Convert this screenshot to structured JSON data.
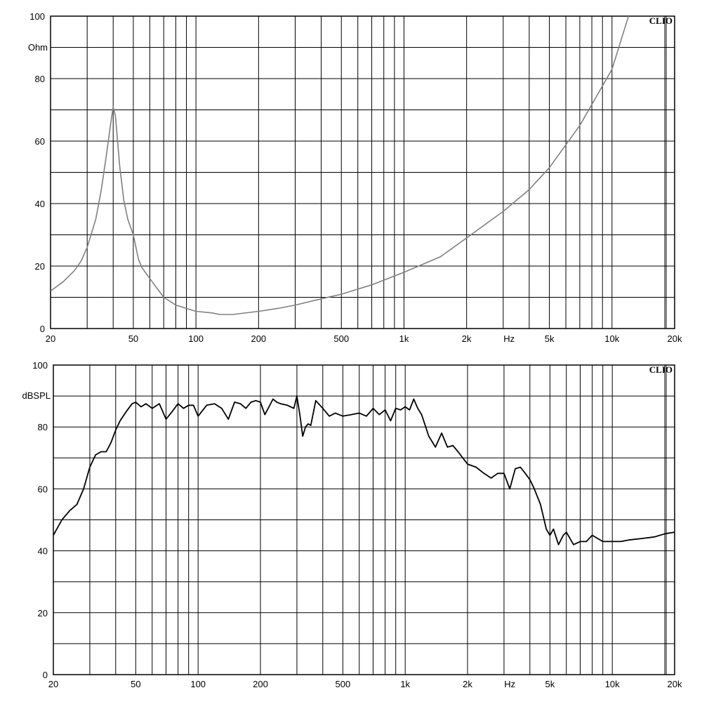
{
  "chart_data": [
    {
      "type": "line",
      "brand": "CLIO",
      "x_scale": "log",
      "xlim": [
        20,
        20000
      ],
      "ylim": [
        0,
        100
      ],
      "ylabel": "Ohm",
      "xunit_label": "Hz",
      "grid": true,
      "y_ticks": [
        {
          "v": 0,
          "label": "0"
        },
        {
          "v": 20,
          "label": "20"
        },
        {
          "v": 40,
          "label": "40"
        },
        {
          "v": 60,
          "label": "60"
        },
        {
          "v": 80,
          "label": "80"
        },
        {
          "v": 100,
          "label": "100"
        }
      ],
      "y_grid": [
        10,
        20,
        30,
        40,
        50,
        60,
        70,
        80,
        90
      ],
      "x_ticks": [
        {
          "v": 20,
          "label": "20"
        },
        {
          "v": 50,
          "label": "50"
        },
        {
          "v": 100,
          "label": "100"
        },
        {
          "v": 200,
          "label": "200"
        },
        {
          "v": 500,
          "label": "500"
        },
        {
          "v": 1000,
          "label": "1k"
        },
        {
          "v": 2000,
          "label": "2k"
        },
        {
          "v": 5000,
          "label": "5k"
        },
        {
          "v": 10000,
          "label": "10k"
        },
        {
          "v": 20000,
          "label": "20k"
        }
      ],
      "x_grid": [
        30,
        40,
        50,
        60,
        70,
        80,
        90,
        100,
        200,
        300,
        400,
        500,
        600,
        700,
        800,
        900,
        1000,
        2000,
        3000,
        4000,
        5000,
        6000,
        7000,
        8000,
        9000,
        10000
      ],
      "line_color": "#808080",
      "series": [
        {
          "x": [
            20,
            23,
            26,
            28,
            30,
            33,
            35,
            37,
            39,
            40,
            41,
            42,
            43,
            45,
            47,
            50,
            53,
            55,
            60,
            70,
            80,
            100,
            120,
            130,
            150,
            200,
            250,
            300,
            400,
            500,
            700,
            1000,
            1500,
            2000,
            3000,
            4000,
            5000,
            7000,
            10000,
            12000
          ],
          "y": [
            12,
            15,
            18.5,
            21.5,
            26,
            35,
            44,
            55,
            66,
            71,
            68,
            60,
            52,
            41,
            35,
            30,
            22,
            19.5,
            16,
            10,
            7.5,
            5.5,
            5,
            4.5,
            4.5,
            5.5,
            6.5,
            7.5,
            9.5,
            11,
            14,
            18,
            23,
            29,
            37.5,
            44.5,
            51.5,
            65,
            83,
            100
          ]
        }
      ]
    },
    {
      "type": "line",
      "brand": "CLIO",
      "x_scale": "log",
      "xlim": [
        20,
        20000
      ],
      "ylim": [
        0,
        100
      ],
      "ylabel": "dBSPL",
      "xunit_label": "Hz",
      "grid": true,
      "y_ticks": [
        {
          "v": 0,
          "label": "0"
        },
        {
          "v": 20,
          "label": "20"
        },
        {
          "v": 40,
          "label": "40"
        },
        {
          "v": 60,
          "label": "60"
        },
        {
          "v": 80,
          "label": "80"
        },
        {
          "v": 100,
          "label": "100"
        }
      ],
      "y_grid": [
        10,
        20,
        30,
        40,
        50,
        60,
        70,
        80,
        90
      ],
      "x_ticks": [
        {
          "v": 20,
          "label": "20"
        },
        {
          "v": 50,
          "label": "50"
        },
        {
          "v": 100,
          "label": "100"
        },
        {
          "v": 200,
          "label": "200"
        },
        {
          "v": 500,
          "label": "500"
        },
        {
          "v": 1000,
          "label": "1k"
        },
        {
          "v": 2000,
          "label": "2k"
        },
        {
          "v": 5000,
          "label": "5k"
        },
        {
          "v": 10000,
          "label": "10k"
        },
        {
          "v": 20000,
          "label": "20k"
        }
      ],
      "x_grid": [
        30,
        40,
        50,
        60,
        70,
        80,
        90,
        100,
        200,
        300,
        400,
        500,
        600,
        700,
        800,
        900,
        1000,
        2000,
        3000,
        4000,
        5000,
        6000,
        7000,
        8000,
        9000,
        10000
      ],
      "line_color": "#000000",
      "series": [
        {
          "x": [
            20,
            22,
            24,
            26,
            28,
            30,
            32,
            34,
            36,
            38,
            40,
            42,
            45,
            48,
            50,
            53,
            56,
            60,
            65,
            70,
            75,
            80,
            85,
            90,
            95,
            100,
            110,
            120,
            130,
            140,
            150,
            160,
            170,
            180,
            190,
            200,
            210,
            220,
            230,
            240,
            250,
            270,
            290,
            300,
            310,
            320,
            330,
            340,
            350,
            370,
            400,
            430,
            460,
            500,
            550,
            600,
            650,
            700,
            750,
            800,
            850,
            900,
            950,
            1000,
            1050,
            1100,
            1150,
            1200,
            1300,
            1400,
            1500,
            1600,
            1700,
            1800,
            2000,
            2200,
            2400,
            2600,
            2800,
            3000,
            3200,
            3400,
            3600,
            3800,
            4000,
            4200,
            4500,
            4800,
            5000,
            5200,
            5500,
            5800,
            6000,
            6500,
            7000,
            7500,
            8000,
            9000,
            10000,
            11000,
            12000,
            14000,
            16000,
            18000,
            20000
          ],
          "y": [
            45,
            50,
            53,
            55,
            60,
            67,
            71,
            72,
            72,
            75,
            79,
            82,
            85,
            87.5,
            88,
            86.5,
            87.5,
            86,
            87.5,
            82.5,
            85,
            87.5,
            86,
            87,
            87,
            83.5,
            87,
            87.5,
            86,
            82.5,
            88,
            87.5,
            86,
            88,
            88.5,
            88,
            84,
            86.5,
            89,
            88,
            87.5,
            87,
            86,
            90,
            84,
            77,
            80,
            81,
            80.5,
            88.5,
            86,
            83.5,
            84.5,
            83.5,
            84,
            84.5,
            83.5,
            86,
            84,
            85.5,
            82,
            86,
            85.5,
            86.5,
            85.5,
            89,
            86,
            84,
            77,
            73.5,
            78,
            73.5,
            74,
            72,
            68,
            67,
            65,
            63.5,
            65,
            65,
            60,
            66.5,
            67,
            65,
            63,
            60,
            55,
            47,
            45,
            47,
            42,
            45,
            46,
            42,
            43,
            43,
            45,
            43,
            43,
            43,
            43.5,
            44,
            44.5,
            45.5,
            46
          ]
        }
      ]
    }
  ]
}
